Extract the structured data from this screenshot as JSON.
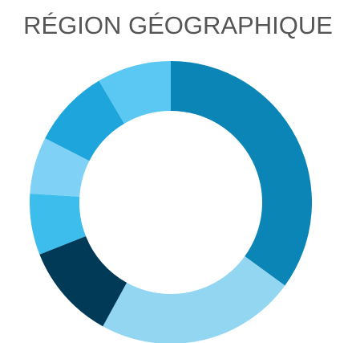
{
  "chart_data": {
    "type": "donut",
    "title": "RÉGION GÉOGRAPHIQUE",
    "values": [
      35,
      23,
      11,
      7,
      6.5,
      9,
      8.5
    ],
    "colors": [
      "#0a85b5",
      "#92d6f2",
      "#003a57",
      "#3dbdec",
      "#7fd1f5",
      "#1ea6dc",
      "#5ac8f3"
    ]
  }
}
